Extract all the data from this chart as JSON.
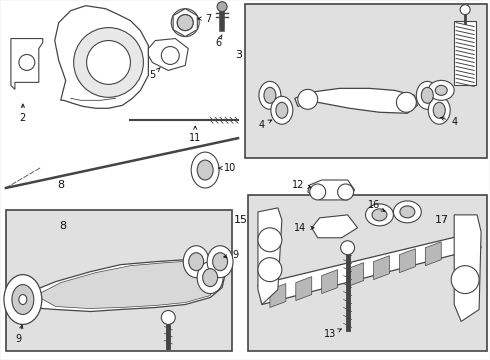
{
  "bg_color": "#f5f5f5",
  "main_bg": "#ffffff",
  "box_bg": "#e0e0e0",
  "line_color": "#444444",
  "text_color": "#111111",
  "figsize": [
    4.9,
    3.6
  ],
  "dpi": 100
}
